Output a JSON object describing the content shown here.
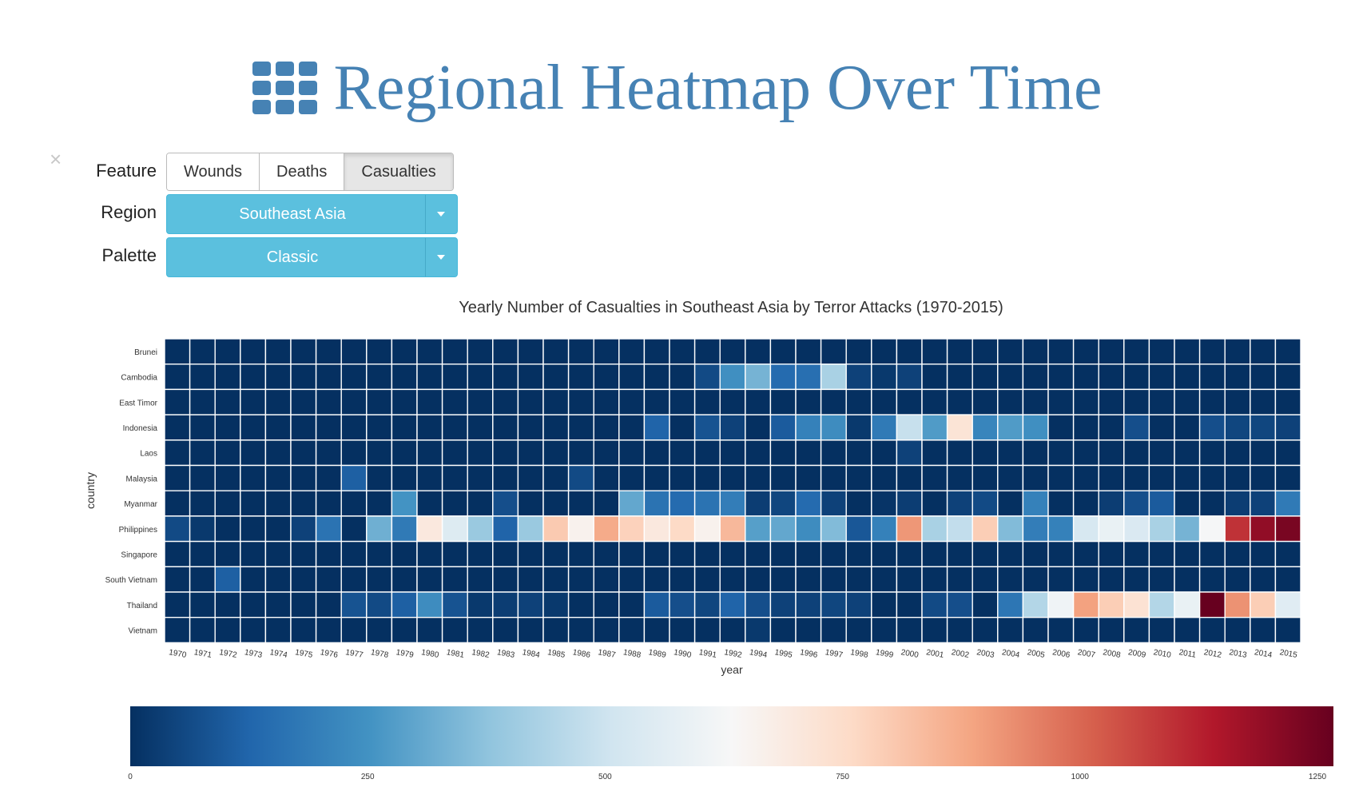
{
  "header": {
    "title": "Regional Heatmap Over Time",
    "icon": "th-grid-icon"
  },
  "controls": {
    "close_symbol": "×",
    "feature": {
      "label": "Feature",
      "options": [
        "Wounds",
        "Deaths",
        "Casualties"
      ],
      "selected": "Casualties"
    },
    "region": {
      "label": "Region",
      "value": "Southeast Asia"
    },
    "palette": {
      "label": "Palette",
      "value": "Classic"
    }
  },
  "colors": {
    "accent": "#4682b4",
    "dropdown": "#5bc0de",
    "close": "#c8c8c8"
  },
  "chart_data": {
    "type": "heatmap",
    "title": "Yearly Number of Casualties in Southeast Asia by Terror Attacks (1970-2015)",
    "xlabel": "year",
    "ylabel": "country",
    "x": [
      "1970",
      "1971",
      "1972",
      "1973",
      "1974",
      "1975",
      "1976",
      "1977",
      "1978",
      "1979",
      "1980",
      "1981",
      "1982",
      "1983",
      "1984",
      "1985",
      "1986",
      "1987",
      "1988",
      "1989",
      "1990",
      "1991",
      "1992",
      "1994",
      "1995",
      "1996",
      "1997",
      "1998",
      "1999",
      "2000",
      "2001",
      "2002",
      "2003",
      "2004",
      "2005",
      "2006",
      "2007",
      "2008",
      "2009",
      "2010",
      "2011",
      "2012",
      "2013",
      "2014",
      "2015"
    ],
    "y": [
      "Brunei",
      "Cambodia",
      "East Timor",
      "Indonesia",
      "Laos",
      "Malaysia",
      "Myanmar",
      "Philippines",
      "Singapore",
      "South Vietnam",
      "Thailand",
      "Vietnam"
    ],
    "colorbar": {
      "min": 0,
      "max": 1250,
      "ticks": [
        0,
        250,
        500,
        750,
        1000,
        1250
      ],
      "palette": "RdBu_r"
    },
    "values": [
      [
        0,
        0,
        0,
        0,
        0,
        0,
        0,
        0,
        0,
        0,
        0,
        0,
        0,
        0,
        0,
        0,
        0,
        0,
        0,
        0,
        0,
        0,
        0,
        0,
        0,
        0,
        0,
        0,
        0,
        0,
        0,
        0,
        0,
        0,
        0,
        0,
        0,
        0,
        0,
        0,
        0,
        0,
        0,
        0,
        0
      ],
      [
        0,
        0,
        0,
        0,
        0,
        0,
        0,
        0,
        0,
        0,
        0,
        0,
        0,
        0,
        0,
        0,
        0,
        0,
        0,
        0,
        0,
        60,
        240,
        330,
        140,
        150,
        420,
        40,
        20,
        40,
        0,
        0,
        0,
        0,
        0,
        0,
        0,
        0,
        0,
        0,
        0,
        0,
        0,
        0,
        0
      ],
      [
        0,
        0,
        0,
        0,
        0,
        0,
        0,
        0,
        0,
        0,
        0,
        0,
        0,
        0,
        0,
        0,
        0,
        0,
        0,
        0,
        0,
        0,
        0,
        0,
        0,
        0,
        0,
        0,
        0,
        0,
        0,
        0,
        0,
        0,
        0,
        0,
        0,
        0,
        0,
        0,
        0,
        0,
        0,
        0,
        0
      ],
      [
        0,
        0,
        0,
        0,
        0,
        0,
        0,
        0,
        0,
        0,
        0,
        0,
        0,
        0,
        0,
        0,
        0,
        0,
        0,
        120,
        0,
        80,
        40,
        0,
        100,
        200,
        230,
        20,
        180,
        480,
        270,
        710,
        210,
        270,
        240,
        0,
        0,
        0,
        70,
        0,
        0,
        70,
        50,
        50,
        40
      ],
      [
        0,
        0,
        0,
        0,
        0,
        0,
        0,
        0,
        0,
        0,
        0,
        0,
        0,
        0,
        0,
        0,
        0,
        0,
        0,
        0,
        0,
        0,
        0,
        0,
        0,
        0,
        0,
        0,
        0,
        40,
        0,
        0,
        0,
        0,
        0,
        0,
        0,
        0,
        0,
        0,
        0,
        0,
        0,
        0,
        0
      ],
      [
        0,
        0,
        0,
        0,
        0,
        0,
        0,
        110,
        0,
        0,
        0,
        0,
        0,
        0,
        0,
        0,
        60,
        0,
        0,
        0,
        0,
        0,
        0,
        0,
        0,
        0,
        0,
        0,
        0,
        0,
        0,
        0,
        0,
        0,
        0,
        0,
        0,
        0,
        0,
        0,
        0,
        0,
        0,
        0,
        0
      ],
      [
        0,
        0,
        0,
        0,
        0,
        0,
        0,
        0,
        0,
        250,
        0,
        0,
        0,
        70,
        0,
        0,
        0,
        0,
        300,
        160,
        140,
        160,
        190,
        30,
        50,
        140,
        40,
        0,
        10,
        30,
        0,
        40,
        60,
        0,
        200,
        0,
        0,
        30,
        70,
        100,
        0,
        0,
        30,
        40,
        180
      ],
      [
        60,
        20,
        0,
        0,
        0,
        40,
        160,
        0,
        320,
        180,
        690,
        540,
        390,
        120,
        390,
        790,
        650,
        860,
        770,
        690,
        750,
        650,
        830,
        280,
        300,
        230,
        350,
        90,
        200,
        900,
        420,
        470,
        780,
        350,
        190,
        200,
        520,
        580,
        530,
        420,
        330,
        620,
        1080,
        1180,
        1220
      ],
      [
        0,
        0,
        0,
        0,
        0,
        0,
        0,
        0,
        0,
        0,
        0,
        0,
        0,
        0,
        0,
        0,
        0,
        0,
        0,
        0,
        0,
        0,
        0,
        0,
        0,
        0,
        0,
        0,
        0,
        0,
        0,
        0,
        0,
        0,
        0,
        0,
        0,
        0,
        0,
        0,
        0,
        0,
        0,
        0,
        0
      ],
      [
        0,
        0,
        110,
        0,
        0,
        0,
        0,
        0,
        0,
        0,
        0,
        0,
        0,
        0,
        0,
        0,
        0,
        0,
        0,
        0,
        0,
        0,
        0,
        0,
        0,
        0,
        0,
        0,
        0,
        0,
        0,
        0,
        0,
        0,
        0,
        0,
        0,
        0,
        0,
        0,
        0,
        0,
        0,
        0,
        0
      ],
      [
        0,
        0,
        0,
        0,
        0,
        0,
        0,
        80,
        60,
        110,
        230,
        80,
        20,
        30,
        40,
        20,
        0,
        0,
        0,
        100,
        70,
        50,
        120,
        70,
        40,
        40,
        50,
        40,
        0,
        0,
        60,
        70,
        0,
        170,
        440,
        600,
        880,
        780,
        720,
        440,
        580,
        1250,
        910,
        780,
        550
      ],
      [
        0,
        0,
        0,
        0,
        0,
        0,
        0,
        0,
        0,
        0,
        0,
        0,
        0,
        0,
        0,
        0,
        0,
        0,
        0,
        0,
        0,
        0,
        0,
        20,
        0,
        0,
        0,
        0,
        0,
        0,
        0,
        0,
        0,
        0,
        0,
        0,
        0,
        0,
        0,
        0,
        0,
        0,
        0,
        0,
        0
      ]
    ]
  }
}
